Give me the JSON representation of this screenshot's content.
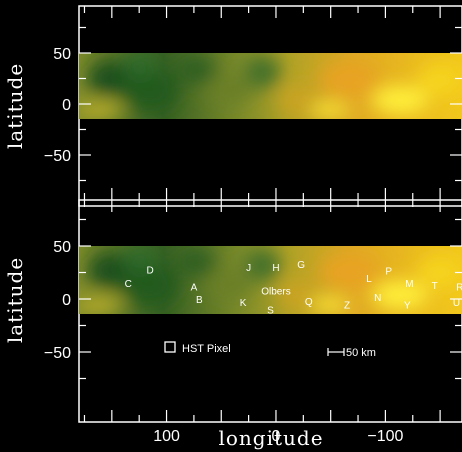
{
  "chart_data": {
    "type": "heatmap",
    "x_axis": {
      "label": "longitude",
      "range": [
        180,
        -170
      ],
      "ticks": [
        100,
        0,
        -100
      ],
      "tick_labels": [
        "100",
        "0",
        "−100"
      ]
    },
    "y_axis": {
      "label": "latitude",
      "range": [
        -90,
        90
      ],
      "ticks": [
        50,
        0,
        -50
      ],
      "tick_labels": [
        "50",
        "0",
        "−50"
      ]
    },
    "map_band_latitude": [
      -15,
      48
    ],
    "panels": [
      {
        "name": "top",
        "features": []
      },
      {
        "name": "bottom",
        "features": [
          {
            "label": "C",
            "lon": 135,
            "lat": 15
          },
          {
            "label": "D",
            "lon": 115,
            "lat": 28
          },
          {
            "label": "A",
            "lon": 75,
            "lat": 12
          },
          {
            "label": "B",
            "lon": 70,
            "lat": 0
          },
          {
            "label": "J",
            "lon": 25,
            "lat": 30
          },
          {
            "label": "H",
            "lon": 0,
            "lat": 30
          },
          {
            "label": "G",
            "lon": -23,
            "lat": 33
          },
          {
            "label": "Olbers",
            "lon": 0,
            "lat": 8
          },
          {
            "label": "K",
            "lon": 30,
            "lat": -3
          },
          {
            "label": "S",
            "lon": 5,
            "lat": -10
          },
          {
            "label": "Q",
            "lon": -30,
            "lat": -2
          },
          {
            "label": "Z",
            "lon": -65,
            "lat": -5
          },
          {
            "label": "L",
            "lon": -85,
            "lat": 20
          },
          {
            "label": "P",
            "lon": -103,
            "lat": 27
          },
          {
            "label": "N",
            "lon": -93,
            "lat": 2
          },
          {
            "label": "M",
            "lon": -122,
            "lat": 15
          },
          {
            "label": "T",
            "lon": -145,
            "lat": 13
          },
          {
            "label": "Y",
            "lon": -120,
            "lat": -5
          },
          {
            "label": "R",
            "lon": -168,
            "lat": 12
          },
          {
            "label": "U",
            "lon": -165,
            "lat": -3
          }
        ]
      }
    ],
    "annotations": {
      "pixel_label": "HST Pixel",
      "scale_label": "50 km"
    },
    "colors": {
      "background": "#000000",
      "frame": "#ffffff",
      "dark_region": "#1e5a1e",
      "mid_region": "#8a8a25",
      "bright_region": "#f2c91a",
      "brightest_region": "#fff23a"
    }
  }
}
